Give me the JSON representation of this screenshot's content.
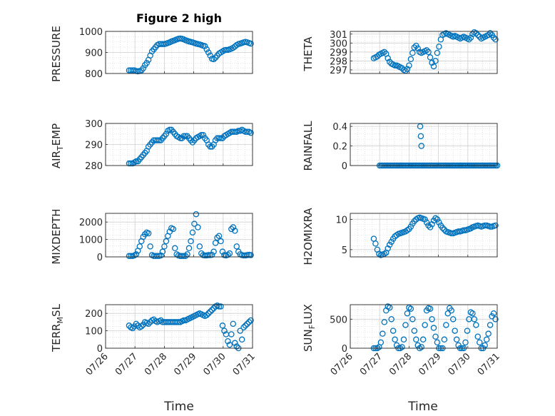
{
  "figure": {
    "title": "Figure 2 high",
    "xlabel": "Time"
  },
  "colors": {
    "marker": "#0072BD",
    "grid": "#d0d0d0",
    "axis": "#262626"
  },
  "chart_data": [
    {
      "type": "scatter",
      "ylabel": "PRESSURE",
      "ylim": [
        800,
        1000
      ],
      "yticks": [
        "800",
        "900",
        "1000"
      ],
      "xlim": [
        0,
        5
      ],
      "xticks": [
        "07/26",
        "07/27",
        "07/28",
        "07/29",
        "07/30",
        "07/31"
      ],
      "x": [
        0.8,
        0.86,
        0.92,
        0.98,
        1.04,
        1.1,
        1.16,
        1.22,
        1.28,
        1.34,
        1.4,
        1.46,
        1.52,
        1.58,
        1.64,
        1.7,
        1.76,
        1.82,
        1.88,
        1.94,
        2.0,
        2.06,
        2.12,
        2.18,
        2.24,
        2.3,
        2.36,
        2.42,
        2.48,
        2.54,
        2.6,
        2.66,
        2.72,
        2.78,
        2.84,
        2.9,
        2.96,
        3.02,
        3.08,
        3.14,
        3.2,
        3.26,
        3.32,
        3.38,
        3.44,
        3.5,
        3.56,
        3.62,
        3.68,
        3.74,
        3.8,
        3.86,
        3.92,
        3.98,
        4.04,
        4.1,
        4.16,
        4.22,
        4.28,
        4.34,
        4.4,
        4.46,
        4.52,
        4.58,
        4.64,
        4.7,
        4.76,
        4.82,
        4.88,
        4.94
      ],
      "y": [
        815,
        815,
        815,
        815,
        812,
        810,
        812,
        815,
        825,
        840,
        850,
        865,
        885,
        905,
        915,
        925,
        935,
        940,
        940,
        940,
        940,
        942,
        945,
        948,
        952,
        955,
        958,
        962,
        965,
        966,
        965,
        962,
        958,
        955,
        952,
        950,
        948,
        945,
        942,
        940,
        938,
        935,
        932,
        930,
        915,
        900,
        885,
        870,
        868,
        875,
        885,
        895,
        900,
        905,
        910,
        912,
        912,
        915,
        918,
        922,
        928,
        935,
        940,
        942,
        945,
        948,
        950,
        948,
        945,
        942
      ]
    },
    {
      "type": "scatter",
      "ylabel": "THETA",
      "ylim": [
        296.6,
        301.3
      ],
      "yticks": [
        "297",
        "298",
        "299",
        "300",
        "301"
      ],
      "xlim": [
        0,
        5
      ],
      "xticks": [
        "07/26",
        "07/27",
        "07/28",
        "07/29",
        "07/30",
        "07/31"
      ],
      "x": [
        0.8,
        0.86,
        0.92,
        0.98,
        1.04,
        1.1,
        1.16,
        1.22,
        1.28,
        1.34,
        1.4,
        1.46,
        1.52,
        1.58,
        1.64,
        1.7,
        1.76,
        1.82,
        1.88,
        1.94,
        2.0,
        2.06,
        2.12,
        2.18,
        2.24,
        2.3,
        2.36,
        2.42,
        2.48,
        2.54,
        2.6,
        2.66,
        2.72,
        2.78,
        2.84,
        2.9,
        2.96,
        3.02,
        3.08,
        3.14,
        3.2,
        3.26,
        3.32,
        3.38,
        3.44,
        3.5,
        3.56,
        3.62,
        3.68,
        3.74,
        3.8,
        3.86,
        3.92,
        3.98,
        4.04,
        4.1,
        4.16,
        4.22,
        4.28,
        4.34,
        4.4,
        4.46,
        4.52,
        4.58,
        4.64,
        4.7,
        4.76,
        4.82,
        4.88,
        4.94
      ],
      "y": [
        298.3,
        298.4,
        298.5,
        298.7,
        298.8,
        298.9,
        299.0,
        298.8,
        298.3,
        297.9,
        297.7,
        297.6,
        297.5,
        297.5,
        297.4,
        297.3,
        297.2,
        297.0,
        296.9,
        297.1,
        297.5,
        298.2,
        298.9,
        299.5,
        299.7,
        299.4,
        299.0,
        298.9,
        299.0,
        299.1,
        299.2,
        299.0,
        298.4,
        297.8,
        297.4,
        298.0,
        298.9,
        299.6,
        300.4,
        300.9,
        301.0,
        301.1,
        301.0,
        300.9,
        300.8,
        300.7,
        300.8,
        300.7,
        300.6,
        300.5,
        300.6,
        300.7,
        300.6,
        300.5,
        300.4,
        300.6,
        301.0,
        301.2,
        301.1,
        300.9,
        300.7,
        300.5,
        300.6,
        300.7,
        300.8,
        300.9,
        301.1,
        300.9,
        300.6,
        300.4
      ]
    },
    {
      "type": "scatter",
      "ylabel": "AIR_TEMP",
      "ylim": [
        280,
        300
      ],
      "yticks": [
        "280",
        "290",
        "300"
      ],
      "xlim": [
        0,
        5
      ],
      "xticks": [
        "07/26",
        "07/27",
        "07/28",
        "07/29",
        "07/30",
        "07/31"
      ],
      "x": [
        0.8,
        0.86,
        0.92,
        0.98,
        1.04,
        1.1,
        1.16,
        1.22,
        1.28,
        1.34,
        1.4,
        1.46,
        1.52,
        1.58,
        1.64,
        1.7,
        1.76,
        1.82,
        1.88,
        1.94,
        2.0,
        2.06,
        2.12,
        2.18,
        2.24,
        2.3,
        2.36,
        2.42,
        2.48,
        2.54,
        2.6,
        2.66,
        2.72,
        2.78,
        2.84,
        2.9,
        2.96,
        3.02,
        3.08,
        3.14,
        3.2,
        3.26,
        3.32,
        3.38,
        3.44,
        3.5,
        3.56,
        3.62,
        3.68,
        3.74,
        3.8,
        3.86,
        3.92,
        3.98,
        4.04,
        4.1,
        4.16,
        4.22,
        4.28,
        4.34,
        4.4,
        4.46,
        4.52,
        4.58,
        4.64,
        4.7,
        4.76,
        4.82,
        4.88,
        4.94
      ],
      "y": [
        281,
        281,
        281,
        281.5,
        282,
        282,
        283,
        284,
        285,
        286,
        287,
        289,
        290,
        291,
        292,
        292,
        292,
        292,
        292,
        293,
        294,
        295,
        296.5,
        297,
        297,
        296,
        295,
        294,
        293.5,
        293,
        293,
        294,
        294,
        294,
        293,
        292,
        291,
        292,
        293,
        293.5,
        294,
        294.5,
        294.5,
        293,
        292,
        290,
        289,
        289,
        290,
        292,
        293,
        293,
        293,
        293,
        294,
        294.5,
        295,
        295.5,
        296,
        296,
        296,
        296,
        296.5,
        296.5,
        297,
        296.5,
        296,
        296,
        296,
        295.5
      ]
    },
    {
      "type": "scatter",
      "ylabel": "RAINFALL",
      "ylim": [
        0,
        0.43
      ],
      "yticks": [
        "0",
        "0.2",
        "0.4"
      ],
      "xlim": [
        0,
        5
      ],
      "xticks": [
        "07/26",
        "07/27",
        "07/28",
        "07/29",
        "07/30",
        "07/31"
      ],
      "x": [
        1.0,
        1.05,
        1.1,
        1.15,
        1.2,
        1.25,
        1.3,
        1.35,
        1.4,
        1.45,
        1.5,
        1.55,
        1.6,
        1.65,
        1.7,
        1.75,
        1.8,
        1.85,
        1.9,
        1.95,
        2.0,
        2.05,
        2.1,
        2.15,
        2.2,
        2.25,
        2.3,
        2.35,
        2.4,
        2.45,
        2.5,
        2.55,
        2.6,
        2.65,
        2.7,
        2.75,
        2.8,
        2.85,
        2.9,
        2.95,
        3.0,
        3.05,
        3.1,
        3.15,
        3.2,
        3.25,
        3.3,
        3.35,
        3.4,
        3.45,
        3.5,
        3.55,
        3.6,
        3.65,
        3.7,
        3.75,
        3.8,
        3.85,
        3.9,
        3.95,
        4.0,
        4.05,
        4.1,
        4.15,
        4.2,
        4.25,
        4.3,
        4.35,
        4.4,
        4.45,
        4.5,
        4.55,
        4.6,
        4.65,
        4.7,
        4.75,
        4.8,
        4.85,
        4.9,
        4.95,
        5.0,
        2.38,
        2.4,
        2.42
      ],
      "y": [
        0,
        0,
        0,
        0,
        0,
        0,
        0,
        0,
        0,
        0,
        0,
        0,
        0,
        0,
        0,
        0,
        0,
        0,
        0,
        0,
        0,
        0,
        0,
        0,
        0,
        0,
        0,
        0,
        0,
        0,
        0,
        0,
        0,
        0,
        0,
        0,
        0,
        0,
        0,
        0,
        0,
        0,
        0,
        0,
        0,
        0,
        0,
        0,
        0,
        0,
        0,
        0,
        0,
        0,
        0,
        0,
        0,
        0,
        0,
        0,
        0,
        0,
        0,
        0,
        0,
        0,
        0,
        0,
        0,
        0,
        0,
        0,
        0,
        0,
        0,
        0,
        0,
        0,
        0,
        0,
        0,
        0.4,
        0.3,
        0.2
      ]
    },
    {
      "type": "scatter",
      "ylabel": "MIXDEPTH",
      "ylim": [
        0,
        2500
      ],
      "yticks": [
        "0",
        "1000",
        "2000"
      ],
      "xlim": [
        0,
        5
      ],
      "xticks": [
        "07/26",
        "07/27",
        "07/28",
        "07/29",
        "07/30",
        "07/31"
      ],
      "x": [
        0.8,
        0.86,
        0.92,
        0.98,
        1.04,
        1.1,
        1.16,
        1.22,
        1.28,
        1.34,
        1.4,
        1.46,
        1.52,
        1.58,
        1.64,
        1.7,
        1.76,
        1.82,
        1.88,
        1.94,
        2.0,
        2.06,
        2.12,
        2.18,
        2.24,
        2.3,
        2.36,
        2.42,
        2.48,
        2.54,
        2.6,
        2.66,
        2.72,
        2.78,
        2.84,
        2.9,
        2.96,
        3.02,
        3.08,
        3.14,
        3.2,
        3.26,
        3.32,
        3.38,
        3.44,
        3.5,
        3.56,
        3.62,
        3.68,
        3.74,
        3.8,
        3.86,
        3.92,
        3.98,
        4.04,
        4.1,
        4.16,
        4.22,
        4.28,
        4.34,
        4.4,
        4.46,
        4.52,
        4.58,
        4.64,
        4.7,
        4.76,
        4.82,
        4.88,
        4.94
      ],
      "y": [
        50,
        50,
        50,
        80,
        150,
        350,
        600,
        900,
        1150,
        1300,
        1400,
        1350,
        600,
        100,
        50,
        50,
        50,
        50,
        80,
        300,
        600,
        900,
        1200,
        1450,
        1650,
        1600,
        500,
        150,
        80,
        50,
        50,
        50,
        50,
        150,
        500,
        900,
        1400,
        1900,
        2450,
        1700,
        600,
        200,
        100,
        80,
        80,
        100,
        100,
        120,
        300,
        800,
        1100,
        1200,
        900,
        300,
        100,
        80,
        120,
        200,
        1600,
        1700,
        1500,
        600,
        300,
        150,
        100,
        80,
        80,
        100,
        120,
        100
      ]
    },
    {
      "type": "scatter",
      "ylabel": "H2OMIXRA",
      "ylim": [
        3.8,
        11
      ],
      "yticks": [
        "5",
        "10"
      ],
      "xlim": [
        0,
        5
      ],
      "xticks": [
        "07/26",
        "07/27",
        "07/28",
        "07/29",
        "07/30",
        "07/31"
      ],
      "x": [
        0.8,
        0.86,
        0.92,
        0.98,
        1.04,
        1.1,
        1.16,
        1.22,
        1.28,
        1.34,
        1.4,
        1.46,
        1.52,
        1.58,
        1.64,
        1.7,
        1.76,
        1.82,
        1.88,
        1.94,
        2.0,
        2.06,
        2.12,
        2.18,
        2.24,
        2.3,
        2.36,
        2.42,
        2.48,
        2.54,
        2.6,
        2.66,
        2.72,
        2.78,
        2.84,
        2.9,
        2.96,
        3.02,
        3.08,
        3.14,
        3.2,
        3.26,
        3.32,
        3.38,
        3.44,
        3.5,
        3.56,
        3.62,
        3.68,
        3.74,
        3.8,
        3.86,
        3.92,
        3.98,
        4.04,
        4.1,
        4.16,
        4.22,
        4.28,
        4.34,
        4.4,
        4.46,
        4.52,
        4.58,
        4.64,
        4.7,
        4.76,
        4.82,
        4.88,
        4.94
      ],
      "y": [
        6.8,
        6.0,
        5.0,
        4.3,
        4.1,
        4.2,
        4.3,
        4.5,
        5.2,
        5.8,
        6.3,
        6.8,
        7.2,
        7.4,
        7.6,
        7.7,
        7.8,
        7.9,
        8.0,
        8.2,
        8.4,
        8.8,
        9.3,
        9.7,
        10.0,
        10.2,
        10.3,
        10.2,
        10.1,
        10.0,
        9.5,
        9.0,
        8.7,
        9.2,
        9.8,
        10.2,
        10.0,
        9.5,
        9.0,
        8.6,
        8.3,
        8.0,
        7.9,
        7.8,
        7.7,
        7.7,
        7.8,
        7.9,
        8.0,
        8.0,
        8.1,
        8.2,
        8.2,
        8.3,
        8.4,
        8.5,
        8.7,
        8.8,
        8.9,
        9.0,
        8.9,
        8.8,
        8.9,
        9.0,
        9.0,
        8.9,
        8.8,
        8.8,
        8.9,
        9.0
      ]
    },
    {
      "type": "scatter",
      "ylabel": "TERR_MSL",
      "ylim": [
        0,
        250
      ],
      "yticks": [
        "0",
        "100",
        "200"
      ],
      "xlim": [
        0,
        5
      ],
      "xticks": [
        "07/26",
        "07/27",
        "07/28",
        "07/29",
        "07/30",
        "07/31"
      ],
      "x": [
        0.8,
        0.86,
        0.92,
        0.98,
        1.04,
        1.1,
        1.16,
        1.22,
        1.28,
        1.34,
        1.4,
        1.46,
        1.52,
        1.58,
        1.64,
        1.7,
        1.76,
        1.82,
        1.88,
        1.94,
        2.0,
        2.06,
        2.12,
        2.18,
        2.24,
        2.3,
        2.36,
        2.42,
        2.48,
        2.54,
        2.6,
        2.66,
        2.72,
        2.78,
        2.84,
        2.9,
        2.96,
        3.02,
        3.08,
        3.14,
        3.2,
        3.26,
        3.32,
        3.38,
        3.44,
        3.5,
        3.56,
        3.62,
        3.68,
        3.74,
        3.8,
        3.86,
        3.92,
        3.98,
        4.04,
        4.1,
        4.16,
        4.22,
        4.28,
        4.34,
        4.4,
        4.46,
        4.52,
        4.58,
        4.64,
        4.7,
        4.76,
        4.82,
        4.88,
        4.94
      ],
      "y": [
        130,
        120,
        115,
        125,
        140,
        130,
        120,
        125,
        135,
        150,
        145,
        140,
        150,
        160,
        165,
        155,
        150,
        155,
        160,
        150,
        150,
        150,
        150,
        150,
        150,
        150,
        150,
        150,
        150,
        150,
        155,
        160,
        160,
        165,
        170,
        175,
        180,
        185,
        190,
        195,
        200,
        195,
        190,
        185,
        190,
        200,
        210,
        220,
        230,
        240,
        245,
        240,
        240,
        130,
        100,
        80,
        40,
        20,
        80,
        140,
        30,
        10,
        0,
        100,
        50,
        120,
        130,
        140,
        150,
        160
      ]
    },
    {
      "type": "scatter",
      "ylabel": "SUN_FLUX",
      "ylim": [
        0,
        750
      ],
      "yticks": [
        "0",
        "500"
      ],
      "xlim": [
        0,
        5
      ],
      "xticks": [
        "07/26",
        "07/27",
        "07/28",
        "07/29",
        "07/30",
        "07/31"
      ],
      "x": [
        0.8,
        0.86,
        0.92,
        0.98,
        1.04,
        1.1,
        1.16,
        1.22,
        1.28,
        1.34,
        1.4,
        1.46,
        1.52,
        1.58,
        1.64,
        1.7,
        1.76,
        1.82,
        1.88,
        1.94,
        2.0,
        2.06,
        2.12,
        2.18,
        2.24,
        2.3,
        2.36,
        2.42,
        2.48,
        2.54,
        2.6,
        2.66,
        2.72,
        2.78,
        2.84,
        2.9,
        2.96,
        3.02,
        3.08,
        3.14,
        3.2,
        3.26,
        3.32,
        3.38,
        3.44,
        3.5,
        3.56,
        3.62,
        3.68,
        3.74,
        3.8,
        3.86,
        3.92,
        3.98,
        4.04,
        4.1,
        4.16,
        4.22,
        4.28,
        4.34,
        4.4,
        4.46,
        4.52,
        4.58,
        4.64,
        4.7,
        4.76,
        4.82,
        4.88,
        4.94
      ],
      "y": [
        0,
        0,
        0,
        20,
        100,
        250,
        450,
        650,
        720,
        700,
        500,
        300,
        150,
        50,
        0,
        0,
        20,
        150,
        400,
        600,
        700,
        680,
        500,
        300,
        150,
        50,
        0,
        20,
        150,
        400,
        650,
        690,
        680,
        500,
        350,
        200,
        100,
        0,
        0,
        0,
        150,
        400,
        600,
        690,
        650,
        500,
        300,
        150,
        50,
        0,
        0,
        0,
        100,
        300,
        500,
        620,
        600,
        500,
        400,
        200,
        100,
        0,
        0,
        50,
        150,
        250,
        400,
        550,
        600,
        500
      ]
    }
  ]
}
